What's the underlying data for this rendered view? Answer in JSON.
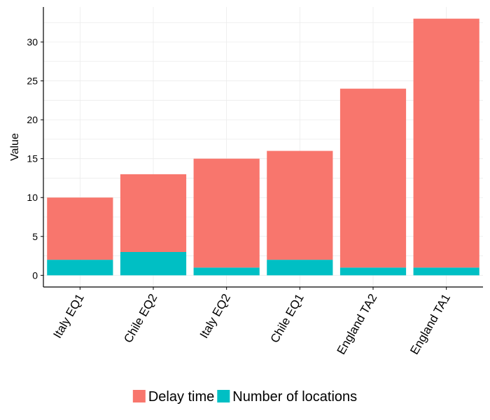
{
  "chart_data": {
    "type": "bar",
    "stacked": true,
    "categories": [
      "Italy EQ1",
      "Chile EQ2",
      "Italy EQ2",
      "Chile EQ1",
      "England TA2",
      "England TA1"
    ],
    "series": [
      {
        "name": "Number of locations",
        "values": [
          2,
          3,
          1,
          2,
          1,
          1
        ],
        "color": "#00BFC4"
      },
      {
        "name": "Delay time",
        "values": [
          8,
          10,
          14,
          14,
          23,
          32
        ],
        "color": "#F8766D"
      }
    ],
    "xlabel": "",
    "ylabel": "Value",
    "ylim": [
      -1.5,
      34.5
    ],
    "yticks": [
      0,
      5,
      10,
      15,
      20,
      25,
      30
    ],
    "grid": true,
    "legend": {
      "position": "bottom",
      "entries": [
        {
          "label": "Delay time",
          "color": "#F8766D"
        },
        {
          "label": "Number of locations",
          "color": "#00BFC4"
        }
      ]
    }
  }
}
